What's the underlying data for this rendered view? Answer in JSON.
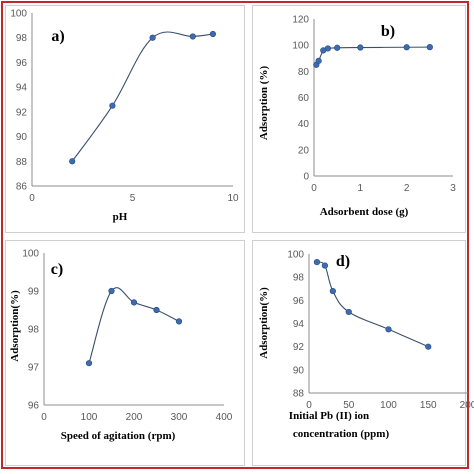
{
  "colors": {
    "frame": "#c0282d",
    "line": "#3a4f6e",
    "marker": "#3d6bb0",
    "axis": "#8c8c8c"
  },
  "chart_data": [
    {
      "panel": "a",
      "type": "line",
      "label": "a)",
      "title": "",
      "xlabel": "pH",
      "ylabel": "",
      "xlim": [
        0,
        10
      ],
      "ylim": [
        86,
        100
      ],
      "xticks": [
        "0",
        "5",
        "10"
      ],
      "xtick_values": [
        0,
        5,
        10
      ],
      "yticks": [
        "86",
        "88",
        "90",
        "92",
        "94",
        "96",
        "98",
        "100"
      ],
      "ytick_values": [
        86,
        88,
        90,
        92,
        94,
        96,
        98,
        100
      ],
      "x": [
        2,
        4,
        6,
        8,
        9
      ],
      "y": [
        88.0,
        92.5,
        98.0,
        98.1,
        98.3
      ],
      "grid": false,
      "markers": true
    },
    {
      "panel": "b",
      "type": "line",
      "label": "b)",
      "title": "",
      "xlabel": "Adsorbent  dose (g)",
      "ylabel": "Adsorption  (%)",
      "xlim": [
        0,
        3
      ],
      "ylim": [
        0,
        120
      ],
      "xticks": [
        "0",
        "1",
        "2",
        "3"
      ],
      "xtick_values": [
        0,
        1,
        2,
        3
      ],
      "yticks": [
        "0",
        "20",
        "40",
        "60",
        "80",
        "100",
        "120"
      ],
      "ytick_values": [
        0,
        20,
        40,
        60,
        80,
        100,
        120
      ],
      "x": [
        0.05,
        0.1,
        0.2,
        0.3,
        0.5,
        1.0,
        2.0,
        2.5
      ],
      "y": [
        85,
        88,
        96,
        97.5,
        98,
        98.2,
        98.4,
        98.5
      ],
      "grid": false,
      "markers": true
    },
    {
      "panel": "c",
      "type": "line",
      "label": "c)",
      "title": "",
      "xlabel": "Speed of agitation  (rpm)",
      "ylabel": "Adsorption(%)",
      "xlim": [
        0,
        400
      ],
      "ylim": [
        96,
        100
      ],
      "xticks": [
        "0",
        "100",
        "200",
        "300",
        "400"
      ],
      "xtick_values": [
        0,
        100,
        200,
        300,
        400
      ],
      "yticks": [
        "96",
        "97",
        "98",
        "99",
        "100"
      ],
      "ytick_values": [
        96,
        97,
        98,
        99,
        100
      ],
      "x": [
        100,
        150,
        200,
        250,
        300
      ],
      "y": [
        97.1,
        99.0,
        98.7,
        98.5,
        98.2
      ],
      "grid": false,
      "markers": true
    },
    {
      "panel": "d",
      "type": "line",
      "label": "d)",
      "title": "",
      "xlabel": "Initial Pb (II) ion",
      "xlabel2": "concentration  (ppm)",
      "ylabel": "Adsorption(%)",
      "xlim": [
        0,
        200
      ],
      "ylim": [
        88,
        100
      ],
      "xticks": [
        "0",
        "50",
        "100",
        "150",
        "200"
      ],
      "xtick_values": [
        0,
        50,
        100,
        150,
        200
      ],
      "yticks": [
        "88",
        "90",
        "92",
        "94",
        "96",
        "98",
        "100"
      ],
      "ytick_values": [
        88,
        90,
        92,
        94,
        96,
        98,
        100
      ],
      "x": [
        10,
        20,
        30,
        50,
        100,
        150
      ],
      "y": [
        99.3,
        99.0,
        96.8,
        95.0,
        93.5,
        92.0
      ],
      "grid": false,
      "markers": true
    }
  ]
}
